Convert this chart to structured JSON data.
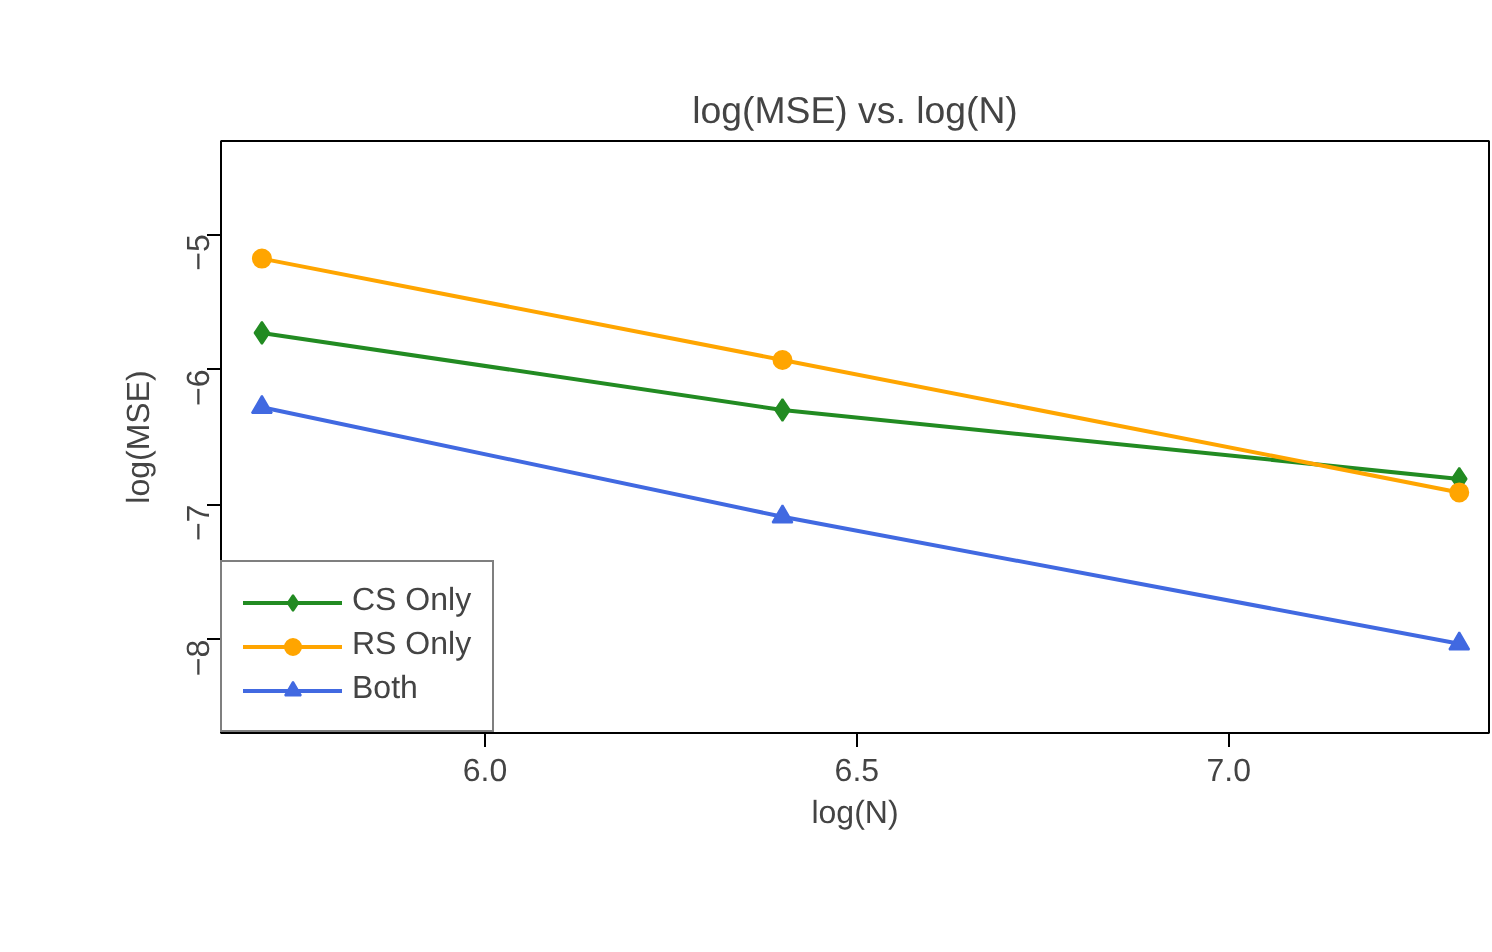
{
  "chart_data": {
    "type": "line",
    "title": "log(MSE) vs. log(N)",
    "xlabel": "log(N)",
    "ylabel": "log(MSE)",
    "x": [
      5.7,
      6.4,
      7.31
    ],
    "series": [
      {
        "name": "CS Only",
        "color": "#228b22",
        "values": [
          -5.73,
          -6.3,
          -6.81
        ],
        "marker": "diamond"
      },
      {
        "name": "RS Only",
        "color": "#ffa500",
        "values": [
          -5.18,
          -5.93,
          -6.91
        ],
        "marker": "circle"
      },
      {
        "name": "Both",
        "color": "#4169e1",
        "values": [
          -6.28,
          -7.09,
          -8.03
        ],
        "marker": "triangle"
      }
    ],
    "xlim": [
      5.645,
      7.35
    ],
    "ylim": [
      -8.69,
      -4.31
    ],
    "xticks": [
      {
        "value": 6,
        "label": "6.0"
      },
      6.5,
      {
        "value": 7,
        "label": "7.0"
      }
    ],
    "yticks": [
      -5,
      -6,
      -7,
      -8
    ],
    "grid": false,
    "legend": "bottom left",
    "line_style": "solid"
  }
}
